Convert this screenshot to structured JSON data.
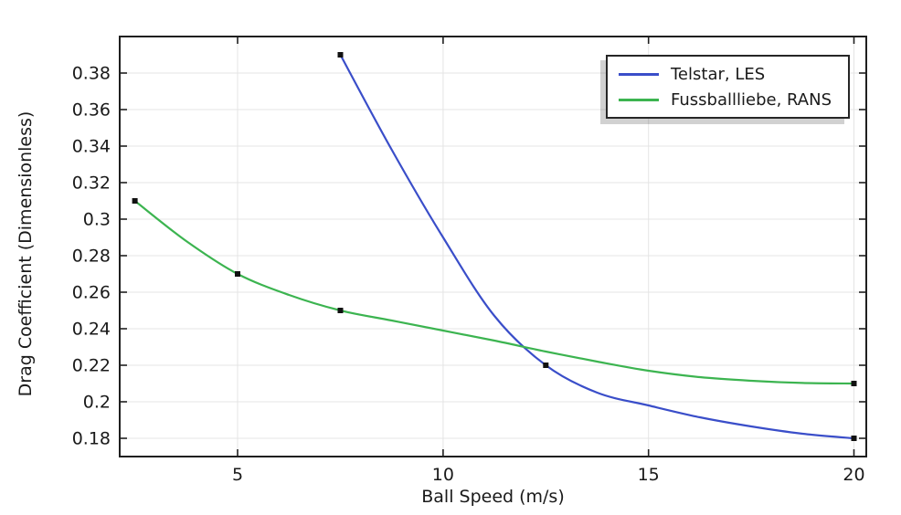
{
  "figure": {
    "background": "#ffffff",
    "text_color": "#1a1a1a"
  },
  "chart_data": {
    "type": "line",
    "title": "",
    "xlabel": "Ball Speed (m/s)",
    "ylabel": "Drag Coefficient (Dimensionless)",
    "xlim": [
      2.13,
      20.3
    ],
    "ylim": [
      0.17,
      0.4
    ],
    "grid": true,
    "grid_color": "#e4e4e4",
    "frame_color": "#1f1f1f",
    "tick_color": "#1f1f1f",
    "xticks": [
      [
        5,
        "5"
      ],
      [
        10,
        "10"
      ],
      [
        15,
        "15"
      ],
      [
        20,
        "20"
      ]
    ],
    "yticks": [
      [
        0.18,
        "0.18"
      ],
      [
        0.2,
        "0.2"
      ],
      [
        0.22,
        "0.22"
      ],
      [
        0.24,
        "0.24"
      ],
      [
        0.26,
        "0.26"
      ],
      [
        0.28,
        "0.28"
      ],
      [
        0.3,
        "0.3"
      ],
      [
        0.32,
        "0.32"
      ],
      [
        0.34,
        "0.34"
      ],
      [
        0.36,
        "0.36"
      ],
      [
        0.38,
        "0.38"
      ]
    ],
    "legend": {
      "position": "top-right",
      "entries": [
        "Telstar, LES",
        "Fussballliebe, RANS"
      ]
    },
    "series": [
      {
        "name": "Telstar, LES",
        "color": "#3a4ec9",
        "marker": "square",
        "marker_color": "#111111",
        "points": [
          [
            7.5,
            0.39
          ],
          [
            12.5,
            0.22
          ],
          [
            20,
            0.18
          ]
        ],
        "curve_samples": [
          [
            7.5,
            0.39
          ],
          [
            8.75,
            0.338
          ],
          [
            10,
            0.29
          ],
          [
            11.25,
            0.247
          ],
          [
            12.5,
            0.22
          ],
          [
            13.75,
            0.205
          ],
          [
            15,
            0.198
          ],
          [
            16.25,
            0.1915
          ],
          [
            17.5,
            0.1865
          ],
          [
            18.75,
            0.1825
          ],
          [
            20,
            0.18
          ]
        ]
      },
      {
        "name": "Fussballliebe, RANS",
        "color": "#3cb450",
        "marker": "square",
        "marker_color": "#111111",
        "points": [
          [
            2.5,
            0.31
          ],
          [
            5,
            0.27
          ],
          [
            7.5,
            0.25
          ],
          [
            20,
            0.21
          ]
        ],
        "curve_samples": [
          [
            2.5,
            0.31
          ],
          [
            3.75,
            0.288
          ],
          [
            5,
            0.27
          ],
          [
            6.25,
            0.2585
          ],
          [
            7.5,
            0.25
          ],
          [
            8.75,
            0.2445
          ],
          [
            10,
            0.239
          ],
          [
            11.25,
            0.2335
          ],
          [
            12.5,
            0.2275
          ],
          [
            13.75,
            0.222
          ],
          [
            15,
            0.217
          ],
          [
            16.25,
            0.2135
          ],
          [
            17.5,
            0.2115
          ],
          [
            18.75,
            0.2103
          ],
          [
            20,
            0.21
          ]
        ]
      }
    ]
  }
}
